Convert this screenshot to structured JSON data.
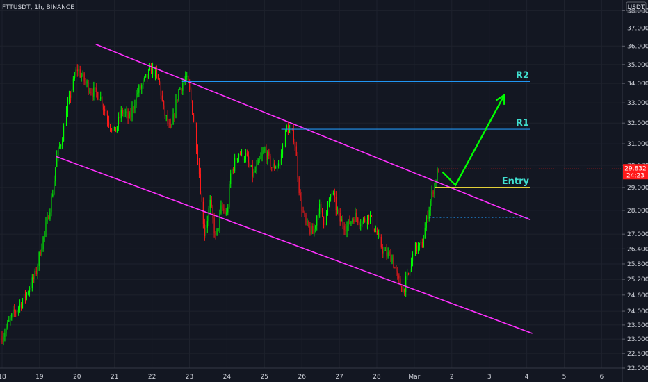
{
  "header": {
    "title": "FTTUSDT, 1h, BINANCE"
  },
  "price_axis": {
    "currency": "USDT"
  },
  "last_price": {
    "value": "29.832",
    "countdown": "24:23"
  },
  "colors": {
    "background": "#131722",
    "up": "#00ff00",
    "down": "#ff1a1a",
    "channel": "#ff30ff",
    "level": "#2196f3",
    "entry": "#ffeb3b",
    "label": "#40e0d0",
    "arrow": "#00ff00",
    "last_price_bg": "#ff1a1a"
  },
  "chart_data": {
    "type": "candlestick",
    "symbol": "FTTUSDT",
    "interval": "1h",
    "exchange": "BINANCE",
    "x_ticks": [
      "18",
      "19",
      "20",
      "21",
      "22",
      "23",
      "24",
      "25",
      "26",
      "27",
      "28",
      "Mar",
      "2",
      "3",
      "4",
      "5",
      "6"
    ],
    "y_ticks": [
      "38.000",
      "37.000",
      "36.000",
      "35.000",
      "34.000",
      "33.000",
      "32.000",
      "31.000",
      "30.000",
      "29.000",
      "28.000",
      "27.000",
      "26.400",
      "25.800",
      "25.200",
      "24.600",
      "24.000",
      "23.500",
      "23.000",
      "22.500",
      "22.000"
    ],
    "y_scale": "log",
    "ylim": [
      22.0,
      38.3
    ],
    "price_path": [
      [
        "18",
        23.1
      ],
      [
        "18.3",
        23.9
      ],
      [
        "18.6",
        24.5
      ],
      [
        "18.9",
        25.4
      ],
      [
        "19",
        26.2
      ],
      [
        "19.2",
        27.5
      ],
      [
        "19.35",
        28.8
      ],
      [
        "19.45",
        30.3
      ],
      [
        "19.6",
        31.3
      ],
      [
        "19.75",
        32.8
      ],
      [
        "19.9",
        34.0
      ],
      [
        "20",
        34.8
      ],
      [
        "20.2",
        34.1
      ],
      [
        "20.4",
        33.6
      ],
      [
        "20.6",
        33.4
      ],
      [
        "20.8",
        32.3
      ],
      [
        "21",
        31.5
      ],
      [
        "21.2",
        32.6
      ],
      [
        "21.4",
        32.2
      ],
      [
        "21.6",
        33.5
      ],
      [
        "21.8",
        34.1
      ],
      [
        "22",
        34.8
      ],
      [
        "22.2",
        34.0
      ],
      [
        "22.3",
        32.7
      ],
      [
        "22.5",
        31.5
      ],
      [
        "22.7",
        33.6
      ],
      [
        "22.9",
        34.3
      ],
      [
        "23",
        33.6
      ],
      [
        "23.15",
        31.7
      ],
      [
        "23.3",
        28.9
      ],
      [
        "23.4",
        27.0
      ],
      [
        "23.55",
        28.3
      ],
      [
        "23.7",
        26.8
      ],
      [
        "23.85",
        28.1
      ],
      [
        "24",
        27.8
      ],
      [
        "24.1",
        29.6
      ],
      [
        "24.3",
        30.6
      ],
      [
        "24.5",
        30.4
      ],
      [
        "24.7",
        29.5
      ],
      [
        "25",
        30.7
      ],
      [
        "25.2",
        29.9
      ],
      [
        "25.4",
        30.1
      ],
      [
        "25.6",
        31.8
      ],
      [
        "25.8",
        31.3
      ],
      [
        "25.95",
        28.5
      ],
      [
        "26.1",
        27.4
      ],
      [
        "26.3",
        27.0
      ],
      [
        "26.45",
        28.2
      ],
      [
        "26.6",
        27.5
      ],
      [
        "26.8",
        28.8
      ],
      [
        "27",
        27.6
      ],
      [
        "27.2",
        27.3
      ],
      [
        "27.4",
        27.8
      ],
      [
        "27.6",
        27.5
      ],
      [
        "27.8",
        27.8
      ],
      [
        "28",
        27.0
      ],
      [
        "28.2",
        26.2
      ],
      [
        "28.4",
        26.1
      ],
      [
        "28.55",
        25.2
      ],
      [
        "28.7",
        24.8
      ],
      [
        "28.85",
        25.4
      ],
      [
        "29",
        26.4
      ],
      [
        "29.2",
        26.5
      ],
      [
        "29.35",
        27.8
      ],
      [
        "29.5",
        28.9
      ],
      [
        "29.65",
        29.85
      ]
    ],
    "annotations": [
      {
        "type": "line",
        "label": "channel-top",
        "points": [
          [
            "20.5",
            36.1
          ],
          [
            "4.1",
            27.6
          ]
        ]
      },
      {
        "type": "line",
        "label": "channel-bottom",
        "points": [
          [
            "19.45",
            30.4
          ],
          [
            "4.15",
            23.2
          ]
        ]
      },
      {
        "type": "hline",
        "label": "R2",
        "y": 34.1,
        "from": "22.8",
        "to": "4.1"
      },
      {
        "type": "hline",
        "label": "R1",
        "y": 31.7,
        "from": "25.45",
        "to": "4.1"
      },
      {
        "type": "hline",
        "label": "Entry",
        "y": 29.0,
        "from": "29.55",
        "to": "4.1"
      },
      {
        "type": "dotted-hline",
        "label": "",
        "y": 27.7,
        "from": "29.4",
        "to": "4.1"
      },
      {
        "type": "arrow",
        "label": "projection",
        "points": [
          [
            "29.75",
            29.7
          ],
          [
            "2.1",
            29.1
          ],
          [
            "3.4",
            33.4
          ]
        ]
      }
    ],
    "title": "FTTUSDT, 1h, BINANCE"
  }
}
